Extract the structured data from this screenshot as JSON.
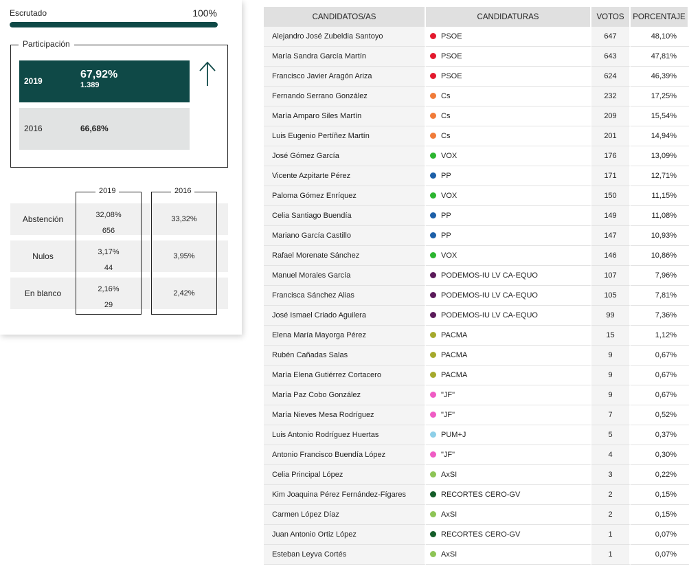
{
  "escrutado": {
    "label": "Escrutado",
    "value": "100%",
    "progress": 1.0
  },
  "participacion": {
    "legend": "Participación",
    "y2019": {
      "year": "2019",
      "pct": "67,92%",
      "votes": "1.389"
    },
    "y2016": {
      "year": "2016",
      "pct": "66,68%"
    },
    "trend_icon": "arrow-up-icon"
  },
  "stats": {
    "head_2019": "2019",
    "head_2016": "2016",
    "rows": [
      {
        "label": "Abstención",
        "pct_2019": "32,08%",
        "num_2019": "656",
        "pct_2016": "33,32%"
      },
      {
        "label": "Nulos",
        "pct_2019": "3,17%",
        "num_2019": "44",
        "pct_2016": "3,95%"
      },
      {
        "label": "En blanco",
        "pct_2019": "2,16%",
        "num_2019": "29",
        "pct_2016": "2,42%"
      }
    ]
  },
  "table": {
    "headers": {
      "name": "CANDIDATOS/AS",
      "party": "CANDIDATURAS",
      "votes": "VOTOS",
      "pct": "PORCENTAJE"
    },
    "rows": [
      {
        "name": "Alejandro José Zubeldia Santoyo",
        "party": "PSOE",
        "color": "#e3192d",
        "votes": "647",
        "pct": "48,10%"
      },
      {
        "name": "María Sandra García Martín",
        "party": "PSOE",
        "color": "#e3192d",
        "votes": "643",
        "pct": "47,81%"
      },
      {
        "name": "Francisco Javier Aragón Ariza",
        "party": "PSOE",
        "color": "#e3192d",
        "votes": "624",
        "pct": "46,39%"
      },
      {
        "name": "Fernando Serrano González",
        "party": "Cs",
        "color": "#f07b39",
        "votes": "232",
        "pct": "17,25%"
      },
      {
        "name": "María Amparo Siles Martín",
        "party": "Cs",
        "color": "#f07b39",
        "votes": "209",
        "pct": "15,54%"
      },
      {
        "name": "Luis Eugenio Pertíñez Martín",
        "party": "Cs",
        "color": "#f07b39",
        "votes": "201",
        "pct": "14,94%"
      },
      {
        "name": "José Gómez García",
        "party": "VOX",
        "color": "#2bb52f",
        "votes": "176",
        "pct": "13,09%"
      },
      {
        "name": "Vicente Azpitarte Pérez",
        "party": "PP",
        "color": "#1c5fa8",
        "votes": "171",
        "pct": "12,71%"
      },
      {
        "name": "Paloma Gómez Enríquez",
        "party": "VOX",
        "color": "#2bb52f",
        "votes": "150",
        "pct": "11,15%"
      },
      {
        "name": "Celia Santiago Buendía",
        "party": "PP",
        "color": "#1c5fa8",
        "votes": "149",
        "pct": "11,08%"
      },
      {
        "name": "Mariano García Castillo",
        "party": "PP",
        "color": "#1c5fa8",
        "votes": "147",
        "pct": "10,93%"
      },
      {
        "name": "Rafael Morenate Sánchez",
        "party": "VOX",
        "color": "#2bb52f",
        "votes": "146",
        "pct": "10,86%"
      },
      {
        "name": "Manuel Morales García",
        "party": "PODEMOS-IU LV CA-EQUO",
        "color": "#5b1a5a",
        "votes": "107",
        "pct": "7,96%"
      },
      {
        "name": "Francisca Sánchez Alias",
        "party": "PODEMOS-IU LV CA-EQUO",
        "color": "#5b1a5a",
        "votes": "105",
        "pct": "7,81%"
      },
      {
        "name": "José Ismael Criado Aguilera",
        "party": "PODEMOS-IU LV CA-EQUO",
        "color": "#5b1a5a",
        "votes": "99",
        "pct": "7,36%"
      },
      {
        "name": "Elena María Mayorga Pérez",
        "party": "PACMA",
        "color": "#a5a92c",
        "votes": "15",
        "pct": "1,12%"
      },
      {
        "name": "Rubén Cañadas Salas",
        "party": "PACMA",
        "color": "#a5a92c",
        "votes": "9",
        "pct": "0,67%"
      },
      {
        "name": "María Elena Gutiérrez Cortacero",
        "party": "PACMA",
        "color": "#a5a92c",
        "votes": "9",
        "pct": "0,67%"
      },
      {
        "name": "María Paz Cobo González",
        "party": "\"JF\"",
        "color": "#ef5cc4",
        "votes": "9",
        "pct": "0,67%"
      },
      {
        "name": "María Nieves Mesa Rodríguez",
        "party": "\"JF\"",
        "color": "#ef5cc4",
        "votes": "7",
        "pct": "0,52%"
      },
      {
        "name": "Luis Antonio Rodríguez Huertas",
        "party": "PUM+J",
        "color": "#8dcfe8",
        "votes": "5",
        "pct": "0,37%"
      },
      {
        "name": "Antonio Francisco Buendía López",
        "party": "\"JF\"",
        "color": "#ef5cc4",
        "votes": "4",
        "pct": "0,30%"
      },
      {
        "name": "Celia Principal López",
        "party": "AxSI",
        "color": "#8dc455",
        "votes": "3",
        "pct": "0,22%"
      },
      {
        "name": "Kim Joaquina Pérez Fernández-Fígares",
        "party": "RECORTES CERO-GV",
        "color": "#135c28",
        "votes": "2",
        "pct": "0,15%"
      },
      {
        "name": "Carmen López Díaz",
        "party": "AxSI",
        "color": "#8dc455",
        "votes": "2",
        "pct": "0,15%"
      },
      {
        "name": "Juan Antonio Ortiz López",
        "party": "RECORTES CERO-GV",
        "color": "#135c28",
        "votes": "1",
        "pct": "0,07%"
      },
      {
        "name": "Esteban Leyva Cortés",
        "party": "AxSI",
        "color": "#8dc455",
        "votes": "1",
        "pct": "0,07%"
      }
    ]
  }
}
